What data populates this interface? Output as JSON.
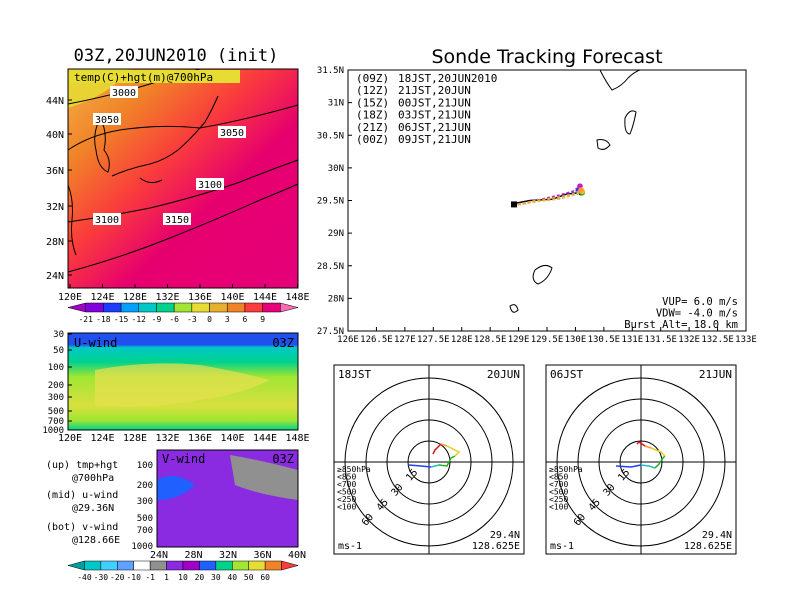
{
  "colors": {
    "c00": "#ff9930",
    "c06": "#f0c040",
    "c12": "#c020c0",
    "c18": "#20b020",
    "c21": "#2040ff",
    "c09": "#000000",
    "temp_scale": [
      "#a000c8",
      "#8200dc",
      "#1e3cff",
      "#00a0ff",
      "#00c8c8",
      "#00d28c",
      "#a0e632",
      "#e6dc32",
      "#e6af2d",
      "#f08228",
      "#fa3c3c",
      "#e6007a",
      "#ff69b4"
    ]
  },
  "map_panel": {
    "title": "03Z,20JUN2010 (init)",
    "label": "temp(C)+hgt(m)@700hPa",
    "y_ticks": [
      "44N",
      "40N",
      "36N",
      "32N",
      "28N",
      "24N"
    ],
    "x_ticks": [
      "120E",
      "124E",
      "128E",
      "132E",
      "136E",
      "140E",
      "144E",
      "148E"
    ],
    "contours": [
      "3000",
      "3050",
      "3050",
      "3100",
      "3100",
      "3150"
    ],
    "colorbar": [
      "-21",
      "-18",
      "-15",
      "-12",
      "-9",
      "-6",
      "-3",
      "0",
      "3",
      "6",
      "9"
    ]
  },
  "u_panel": {
    "label": "U-wind",
    "time": "03Z",
    "y_ticks": [
      "30",
      "50",
      "100",
      "200",
      "300",
      "500",
      "700",
      "1000"
    ],
    "x_ticks": [
      "120E",
      "124E",
      "128E",
      "132E",
      "136E",
      "140E",
      "144E",
      "148E"
    ]
  },
  "v_panel": {
    "label": "V-wind",
    "time": "03Z",
    "y_ticks": [
      "100",
      "200",
      "300",
      "500",
      "700",
      "1000"
    ],
    "x_ticks": [
      "24N",
      "28N",
      "32N",
      "36N",
      "40N"
    ]
  },
  "side_notes": [
    {
      "line1": "(up) tmp+hgt",
      "line2": "@700hPa"
    },
    {
      "line1": "(mid) u-wind",
      "line2": "@29.36N"
    },
    {
      "line1": "(bot) v-wind",
      "line2": "@128.66E"
    }
  ],
  "wind_colorbar": [
    "-40",
    "-30",
    "-20",
    "-10",
    "-1",
    "1",
    "10",
    "20",
    "30",
    "40",
    "50",
    "60"
  ],
  "tracking": {
    "title": "Sonde Tracking Forecast",
    "legend": [
      {
        "code": "(09Z)",
        "label": "18JST,20JUN2010",
        "color": "#000000"
      },
      {
        "code": "(12Z)",
        "label": "21JST,20JUN",
        "color": "#c020c0"
      },
      {
        "code": "(15Z)",
        "label": "00JST,21JUN",
        "color": "#2040ff"
      },
      {
        "code": "(18Z)",
        "label": "03JST,21JUN",
        "color": "#20b020"
      },
      {
        "code": "(21Z)",
        "label": "06JST,21JUN",
        "color": "#f0c040"
      },
      {
        "code": "(00Z)",
        "label": "09JST,21JUN",
        "color": "#ff9930"
      }
    ],
    "params": [
      "VUP= 6.0 m/s",
      "VDW= -4.0 m/s",
      "Burst Alt= 18.0 km"
    ]
  },
  "hodo_left": {
    "time": "18JST",
    "date": "20JUN",
    "lat": "29.4N",
    "lon": "128.625E",
    "unit": "ms-1"
  },
  "hodo_right": {
    "time": "06JST",
    "date": "21JUN",
    "lat": "29.4N",
    "lon": "128.625E",
    "unit": "ms-1"
  },
  "hodo_rings": [
    "15",
    "30",
    "45",
    "60"
  ],
  "pressure_legend": [
    {
      "label": "≥850hPa",
      "color": "#e01010"
    },
    {
      "label": "<850",
      "color": "#ff9930"
    },
    {
      "label": "<700",
      "color": "#e0d020"
    },
    {
      "label": "<500",
      "color": "#20b020"
    },
    {
      "label": "<250",
      "color": "#20c0c0"
    },
    {
      "label": "<100",
      "color": "#2040ff"
    }
  ],
  "chart_data": [
    {
      "type": "line",
      "title": "Sonde Tracking Forecast",
      "x_ticks": [
        "126E",
        "126.5E",
        "127E",
        "127.5E",
        "128E",
        "128.5E",
        "129E",
        "129.5E",
        "130E",
        "130.5E",
        "131E",
        "131.5E",
        "132E",
        "132.5E",
        "133E"
      ],
      "y_ticks": [
        "27.5N",
        "28N",
        "28.5N",
        "29N",
        "29.5N",
        "30N",
        "30.5N",
        "31N",
        "31.5N"
      ],
      "xlim": [
        126,
        133
      ],
      "ylim": [
        27.5,
        31.5
      ],
      "series": [
        {
          "name": "(09Z) 18JST,20JUN2010",
          "color": "#000000",
          "x": [
            128.9,
            129.2,
            129.6,
            129.85,
            130.1
          ],
          "y": [
            29.45,
            29.5,
            29.52,
            29.6,
            29.62
          ]
        },
        {
          "name": "(12Z) 21JST,20JUN",
          "color": "#c020c0",
          "x": [
            128.9,
            129.3,
            129.7,
            129.95,
            130.08
          ],
          "y": [
            29.42,
            29.5,
            29.58,
            29.64,
            29.72
          ]
        },
        {
          "name": "(15Z) 00JST,21JUN",
          "color": "#2040ff",
          "x": [
            128.9,
            129.3,
            129.7,
            129.9,
            130.05
          ],
          "y": [
            29.42,
            29.48,
            29.55,
            29.6,
            29.65
          ]
        },
        {
          "name": "(18Z) 03JST,21JUN",
          "color": "#20b020",
          "x": [
            128.9,
            129.3,
            129.7,
            129.95,
            130.12
          ],
          "y": [
            29.42,
            29.5,
            29.52,
            29.58,
            29.62
          ]
        },
        {
          "name": "(21Z) 06JST,21JUN",
          "color": "#f0c040",
          "x": [
            128.9,
            129.3,
            129.7,
            129.95,
            130.12
          ],
          "y": [
            29.42,
            29.48,
            29.52,
            29.58,
            29.64
          ]
        },
        {
          "name": "(00Z) 09JST,21JUN",
          "color": "#ff9930",
          "x": [
            128.9,
            129.3,
            129.7,
            129.95,
            130.1
          ],
          "y": [
            29.43,
            29.5,
            29.55,
            29.6,
            29.66
          ]
        }
      ]
    }
  ]
}
